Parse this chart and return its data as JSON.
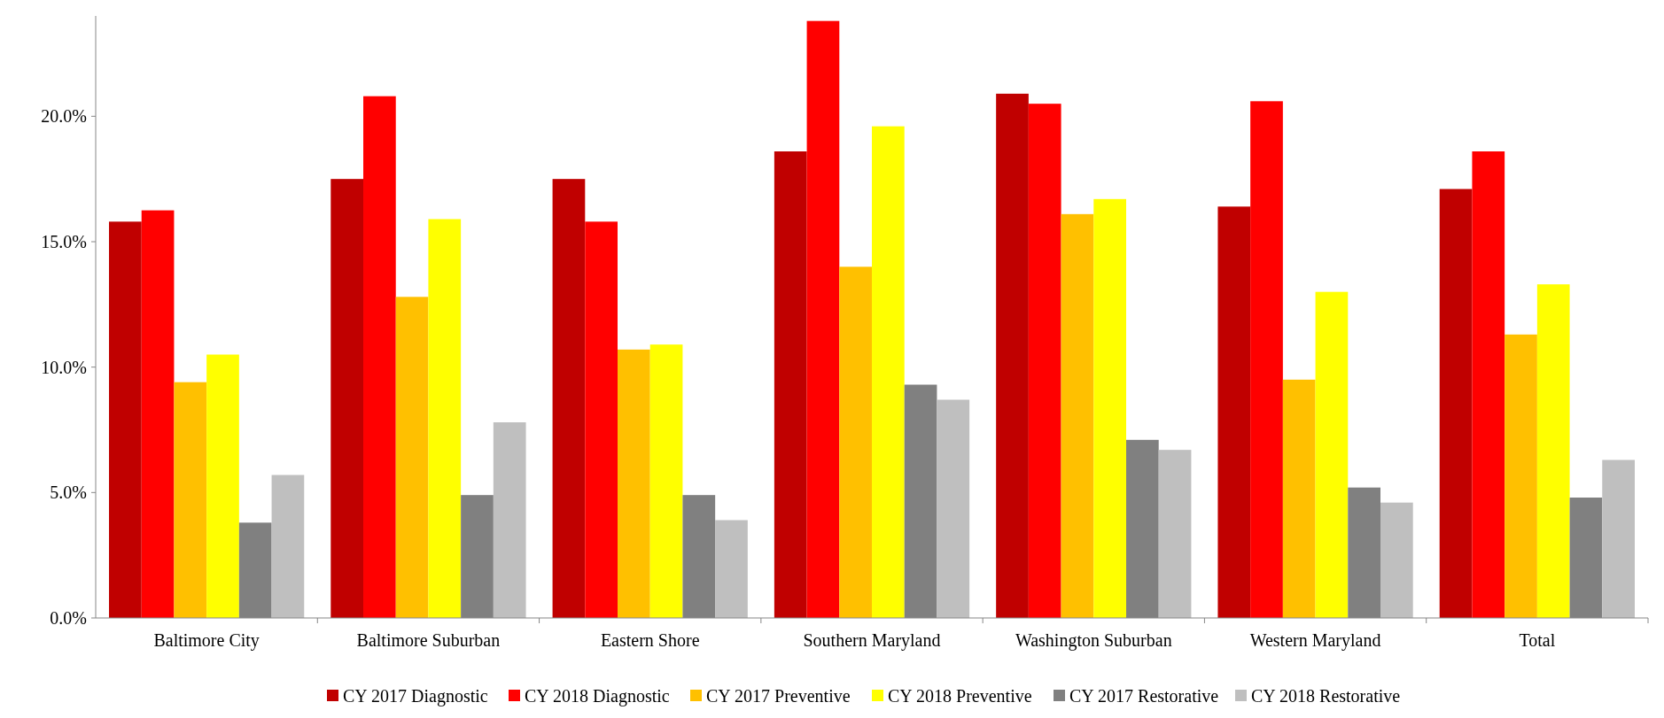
{
  "chart_data": {
    "type": "bar",
    "categories": [
      "Baltimore City",
      "Baltimore Suburban",
      "Eastern Shore",
      "Southern Maryland",
      "Washington Suburban",
      "Western Maryland",
      "Total"
    ],
    "series": [
      {
        "name": "CY 2017 Diagnostic",
        "color": "#c00000",
        "values": [
          15.8,
          17.5,
          17.5,
          18.6,
          20.9,
          16.4,
          17.1
        ]
      },
      {
        "name": "CY 2018 Diagnostic",
        "color": "#ff0000",
        "values": [
          16.25,
          20.8,
          15.8,
          23.8,
          20.5,
          20.6,
          18.6
        ]
      },
      {
        "name": "CY 2017 Preventive",
        "color": "#ffc000",
        "values": [
          9.4,
          12.8,
          10.7,
          14.0,
          16.1,
          9.5,
          11.3
        ]
      },
      {
        "name": "CY 2018 Preventive",
        "color": "#ffff00",
        "values": [
          10.5,
          15.9,
          10.9,
          19.6,
          16.7,
          13.0,
          13.3
        ]
      },
      {
        "name": "CY 2017 Restorative",
        "color": "#808080",
        "values": [
          3.8,
          4.9,
          4.9,
          9.3,
          7.1,
          5.2,
          4.8
        ]
      },
      {
        "name": "CY 2018 Restorative",
        "color": "#bfbfbf",
        "values": [
          5.7,
          7.8,
          3.9,
          8.7,
          6.7,
          4.6,
          6.3
        ]
      }
    ],
    "ylim": [
      0,
      24
    ],
    "yticks": [
      {
        "value": 0,
        "label": "0.0%"
      },
      {
        "value": 5,
        "label": "5.0%"
      },
      {
        "value": 10,
        "label": "10.0%"
      },
      {
        "value": 15,
        "label": "15.0%"
      },
      {
        "value": 20,
        "label": "20.0%"
      }
    ],
    "legend": "bottom"
  }
}
